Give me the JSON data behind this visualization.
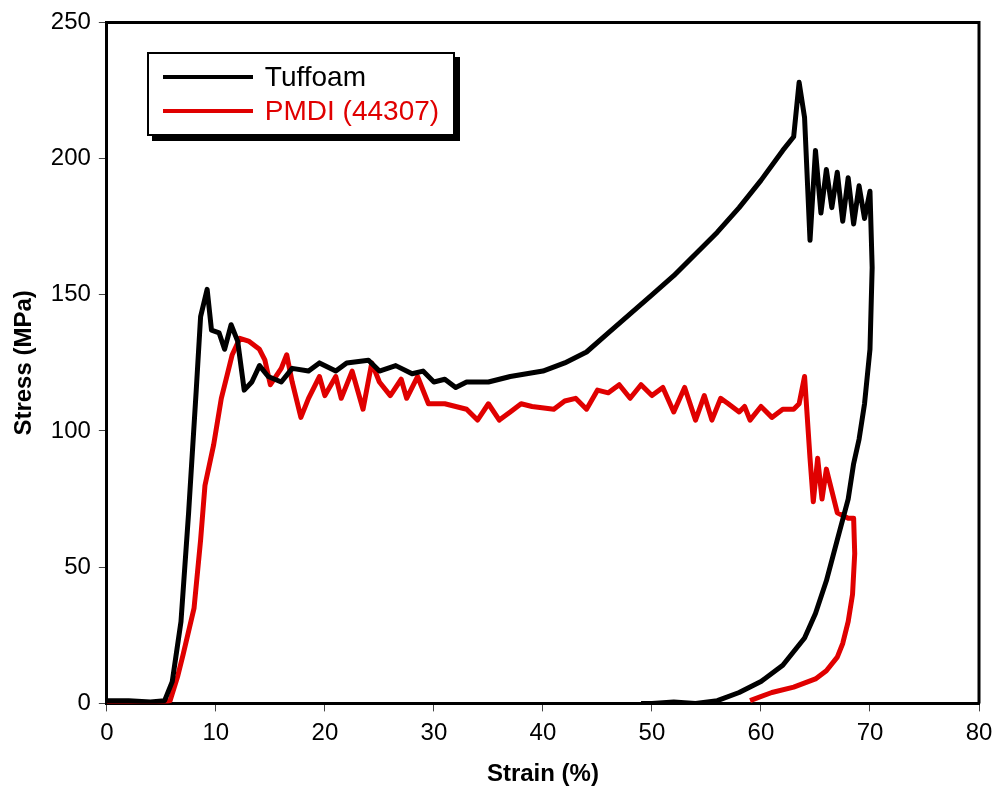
{
  "chart_data": {
    "type": "line",
    "xlabel": "Strain (%)",
    "ylabel": "Stress (MPa)",
    "xlim": [
      0,
      80
    ],
    "xticks": [
      0,
      10,
      20,
      30,
      40,
      50,
      60,
      70,
      80
    ],
    "ylim": [
      0,
      250
    ],
    "yticks": [
      0,
      50,
      100,
      150,
      200,
      250
    ],
    "grid": false,
    "legend": "top left",
    "marker": "none",
    "line_style": "solid",
    "series": [
      {
        "name": "Tuffoam",
        "color": "#000000",
        "x": [
          0,
          2,
          4,
          5.3,
          6,
          6.8,
          7.5,
          8.2,
          8.6,
          9.2,
          9.6,
          10.3,
          10.8,
          11.4,
          12,
          12.6,
          13.3,
          14,
          14.8,
          16,
          17,
          18.5,
          19.5,
          21,
          22,
          24,
          25,
          26.5,
          28,
          29,
          30,
          31,
          32,
          33,
          35,
          37,
          40,
          42,
          44,
          46,
          48,
          50,
          52,
          54,
          56,
          58,
          60,
          62,
          63,
          63.5,
          64,
          64.5,
          65,
          65.5,
          66,
          66.5,
          67,
          67.5,
          68,
          68.5,
          69,
          69.5,
          70,
          70.2,
          70,
          69.5,
          69,
          68.5,
          68,
          67,
          66,
          65,
          64,
          62,
          60,
          58,
          56,
          54,
          52,
          50,
          49
        ],
        "values": [
          1,
          1,
          0.5,
          1,
          8,
          30,
          70,
          115,
          142,
          152,
          137,
          136,
          130,
          139,
          133,
          115,
          118,
          124,
          120,
          118,
          123,
          122,
          125,
          122,
          125,
          126,
          122,
          124,
          121,
          122,
          118,
          119,
          116,
          118,
          118,
          120,
          122,
          125,
          129,
          136,
          143,
          150,
          157,
          165,
          173,
          182,
          192,
          203,
          208,
          228,
          215,
          170,
          203,
          180,
          196,
          182,
          195,
          177,
          193,
          176,
          190,
          178,
          188,
          160,
          130,
          110,
          97,
          88,
          75,
          60,
          45,
          33,
          24,
          14,
          8,
          4,
          1,
          0,
          0.5,
          0,
          0
        ]
      },
      {
        "name": "PMDI (44307)",
        "color": "#e00000",
        "x": [
          0,
          5,
          5.8,
          6.5,
          7,
          8,
          8.6,
          9,
          9.8,
          10.5,
          11,
          11.5,
          12.2,
          13,
          14,
          14.5,
          15,
          16,
          16.5,
          17,
          17.8,
          18.5,
          19.5,
          20,
          21,
          21.5,
          22.5,
          23.5,
          24.3,
          25,
          26,
          27,
          27.5,
          28.5,
          29.5,
          31,
          33,
          34,
          35,
          36,
          37,
          38,
          39,
          41,
          42,
          43,
          44,
          45,
          46,
          47,
          48,
          49,
          50,
          51,
          52,
          53,
          54,
          54.8,
          55.5,
          56.3,
          57,
          58,
          58.5,
          59,
          60,
          61,
          62,
          63,
          63.5,
          64,
          64.5,
          64.8,
          65.2,
          65.6,
          66,
          66.5,
          67,
          68,
          68.5,
          68.6,
          68.4,
          68,
          67.5,
          67,
          66,
          65,
          63,
          61,
          59
        ],
        "values": [
          0,
          0,
          1,
          10,
          18,
          35,
          60,
          80,
          95,
          112,
          120,
          128,
          134,
          133,
          130,
          126,
          117,
          123,
          128,
          118,
          105,
          112,
          120,
          113,
          120,
          112,
          122,
          108,
          125,
          118,
          113,
          119,
          112,
          120,
          110,
          110,
          108,
          104,
          110,
          104,
          107,
          110,
          109,
          108,
          111,
          112,
          108,
          115,
          114,
          117,
          112,
          117,
          113,
          116,
          107,
          116,
          104,
          113,
          104,
          112,
          110,
          107,
          109,
          104,
          109,
          105,
          108,
          108,
          110,
          120,
          90,
          74,
          90,
          75,
          86,
          78,
          70,
          68,
          68,
          55,
          40,
          30,
          22,
          17,
          12,
          9,
          6,
          4,
          1
        ]
      }
    ]
  }
}
